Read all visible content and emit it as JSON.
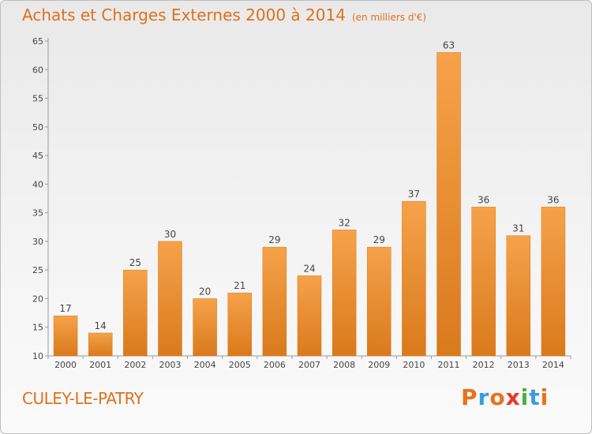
{
  "title": "Achats et Charges Externes 2000 à 2014",
  "unit": "(en milliers d'€)",
  "commune": "CULEY-LE-PATRY",
  "logo": {
    "letters": [
      "P",
      "r",
      "o",
      "x",
      "i",
      "t",
      "i"
    ],
    "colors": [
      "#e8731a",
      "#3a9be0",
      "#e8731a",
      "#e63a2a",
      "#4caf3a",
      "#3a9be0",
      "#e8731a"
    ]
  },
  "colors": {
    "bar_light": "#f6a24a",
    "bar_dark": "#d97a1c",
    "title": "#e0701a"
  },
  "chart_data": {
    "type": "bar",
    "categories": [
      "2000",
      "2001",
      "2002",
      "2003",
      "2004",
      "2005",
      "2006",
      "2007",
      "2008",
      "2009",
      "2010",
      "2011",
      "2012",
      "2013",
      "2014"
    ],
    "values": [
      17,
      14,
      25,
      30,
      20,
      21,
      29,
      24,
      32,
      29,
      37,
      63,
      36,
      31,
      36
    ],
    "ylim": [
      10,
      65
    ],
    "yticks": [
      10,
      15,
      20,
      25,
      30,
      35,
      40,
      45,
      50,
      55,
      60,
      65
    ],
    "grid": false,
    "legend": "none"
  }
}
